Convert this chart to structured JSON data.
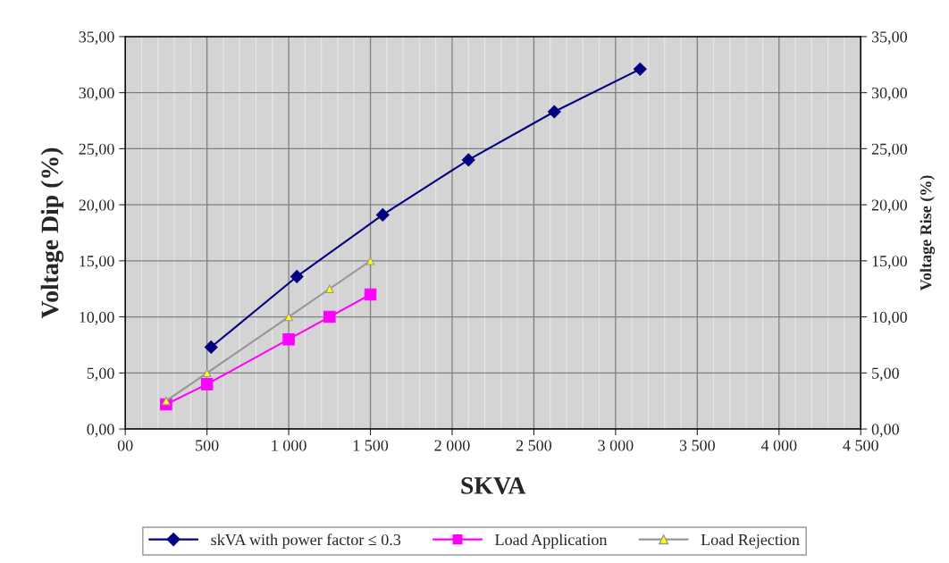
{
  "chart_data": {
    "type": "line",
    "xlabel": "SKVA",
    "ylabel": "Voltage Dip (%)",
    "y2label": "Voltage Rise (%)",
    "xlim": [
      0,
      4500
    ],
    "xticks": [
      {
        "value": 0,
        "label": "00"
      },
      500,
      {
        "value": 1000,
        "label": "1 000"
      },
      {
        "value": 1500,
        "label": "1 500"
      },
      {
        "value": 2000,
        "label": "2 000"
      },
      {
        "value": 2500,
        "label": "2 500"
      },
      {
        "value": 3000,
        "label": "3 000"
      },
      {
        "value": 3500,
        "label": "3 500"
      },
      {
        "value": 4000,
        "label": "4 000"
      },
      {
        "value": 4500,
        "label": "4 500"
      }
    ],
    "ylim": [
      0,
      35
    ],
    "yticks": [
      {
        "value": 0,
        "label": "0,00"
      },
      {
        "value": 5,
        "label": "5,00"
      },
      {
        "value": 10,
        "label": "10,00"
      },
      {
        "value": 15,
        "label": "15,00"
      },
      {
        "value": 20,
        "label": "20,00"
      },
      {
        "value": 25,
        "label": "25,00"
      },
      {
        "value": 30,
        "label": "30,00"
      },
      {
        "value": 35,
        "label": "35,00"
      }
    ],
    "y2lim": [
      0,
      35
    ],
    "y2ticks": [
      {
        "value": 0,
        "label": "0,00"
      },
      {
        "value": 5,
        "label": "5,00"
      },
      {
        "value": 10,
        "label": "10,00"
      },
      {
        "value": 15,
        "label": "15,00"
      },
      {
        "value": 20,
        "label": "20,00"
      },
      {
        "value": 25,
        "label": "25,00"
      },
      {
        "value": 30,
        "label": "30,00"
      },
      {
        "value": 35,
        "label": "35,00"
      }
    ],
    "grid": true,
    "legend": "bottom",
    "series": [
      {
        "name": "skVA with power factor ≤ 0.3",
        "color": "#000080",
        "marker": "diamond",
        "x": [
          525,
          1050,
          1575,
          2100,
          2625,
          3150
        ],
        "values": [
          7.3,
          13.6,
          19.1,
          24.0,
          28.3,
          32.1
        ]
      },
      {
        "name": "Load Application",
        "color": "#ff00ff",
        "marker": "square",
        "x": [
          250,
          500,
          1000,
          1250,
          1500
        ],
        "values": [
          2.2,
          4.0,
          8.0,
          10.0,
          12.0
        ]
      },
      {
        "name": "Load Rejection",
        "color": "#969696",
        "marker": "triangle",
        "x": [
          250,
          500,
          1000,
          1250,
          1500
        ],
        "values": [
          2.5,
          5.0,
          10.0,
          12.5,
          15.0
        ]
      }
    ]
  }
}
